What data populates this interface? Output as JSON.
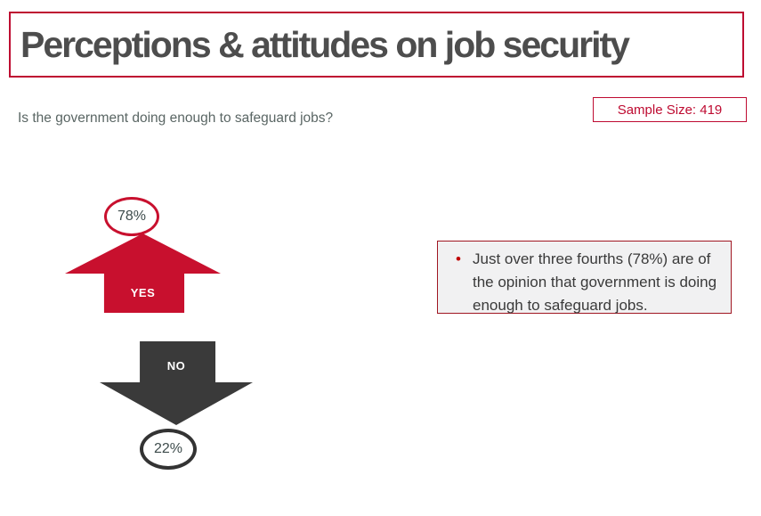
{
  "slide": {
    "title": "Perceptions & attitudes on job security",
    "question": "Is the government doing enough to safeguard jobs?",
    "sample_size": "Sample Size: 419"
  },
  "chart": {
    "yes": {
      "label": "YES",
      "value": "78%"
    },
    "no": {
      "label": "NO",
      "value": "22%"
    }
  },
  "insight": {
    "bullet": "•",
    "text": "Just over three fourths (78%) are of the opinion that government is doing enough to safeguard jobs."
  },
  "chart_data": {
    "type": "bar",
    "title": "Perceptions & attitudes on job security",
    "subtitle": "Is the government doing enough to safeguard jobs?",
    "categories": [
      "YES",
      "NO"
    ],
    "values": [
      78,
      22
    ],
    "unit": "%",
    "sample_size": 419,
    "annotations": [
      "Just over three fourths (78%) are of the opinion that government is doing enough to safeguard jobs."
    ],
    "layout": "pictogram-arrows: red up-arrow for YES, dark down-arrow for NO"
  },
  "colors": {
    "border_red": "#BE0B31",
    "arrow_red": "#C8102E",
    "charcoal": "#3A3A3A",
    "dark_red_border": "#A01622",
    "title_gray": "#4D4D4D",
    "subtitle_gray": "#5A6664",
    "percent_text": "#3E4C4C",
    "box_bg": "#F1F1F2",
    "bullet_red": "#C00000"
  }
}
